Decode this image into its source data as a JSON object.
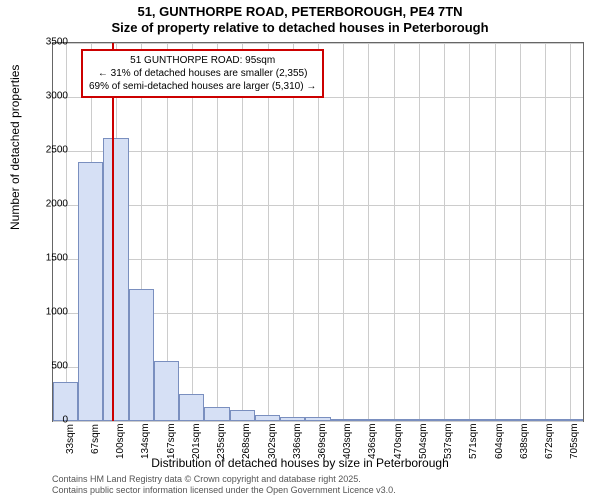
{
  "chart": {
    "type": "histogram",
    "title_main": "51, GUNTHORPE ROAD, PETERBOROUGH, PE4 7TN",
    "title_sub": "Size of property relative to detached houses in Peterborough",
    "ylabel": "Number of detached properties",
    "xlabel": "Distribution of detached houses by size in Peterborough",
    "ylim": [
      0,
      3500
    ],
    "ytick_step": 500,
    "yticks": [
      0,
      500,
      1000,
      1500,
      2000,
      2500,
      3000,
      3500
    ],
    "xticks": [
      "33sqm",
      "67sqm",
      "100sqm",
      "134sqm",
      "167sqm",
      "201sqm",
      "235sqm",
      "268sqm",
      "302sqm",
      "336sqm",
      "369sqm",
      "403sqm",
      "436sqm",
      "470sqm",
      "504sqm",
      "537sqm",
      "571sqm",
      "604sqm",
      "638sqm",
      "672sqm",
      "705sqm"
    ],
    "bars": [
      360,
      2400,
      2620,
      1220,
      560,
      250,
      130,
      100,
      60,
      40,
      40,
      20,
      10,
      5,
      5,
      5,
      5,
      5,
      5,
      5,
      5
    ],
    "bar_fill": "#d6e0f5",
    "bar_border": "#7a8fbf",
    "marker_color": "#cc0000",
    "marker_position_index": 2,
    "grid_color": "#cccccc",
    "background_color": "#ffffff",
    "annotation": {
      "line1": "51 GUNTHORPE ROAD: 95sqm",
      "line2": "← 31% of detached houses are smaller (2,355)",
      "line3": "69% of semi-detached houses are larger (5,310) →"
    },
    "footer1": "Contains HM Land Registry data © Crown copyright and database right 2025.",
    "footer2": "Contains public sector information licensed under the Open Government Licence v3.0."
  }
}
